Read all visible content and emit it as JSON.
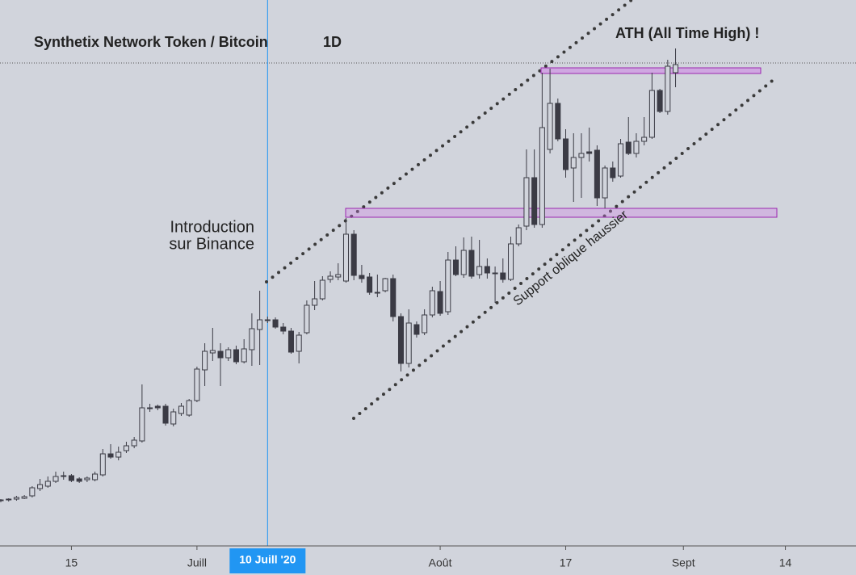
{
  "chart_data": {
    "type": "candlestick",
    "title": "Synthetix Network Token / Bitcoin",
    "interval": "1D",
    "up_color": "#d1d4dc",
    "down_color": "#3b3b45",
    "ylim": [
      0,
      680
    ],
    "xlim": [
      "2020-06-06",
      "2020-09-23"
    ],
    "xticks": [
      {
        "value": "2020-06-15",
        "label": "15"
      },
      {
        "value": "2020-07-01",
        "label": "Juill"
      },
      {
        "value": "2020-08-01",
        "label": "Août"
      },
      {
        "value": "2020-08-17",
        "label": "17"
      },
      {
        "value": "2020-09-01",
        "label": "Sept"
      },
      {
        "value": "2020-09-14",
        "label": "14"
      }
    ],
    "crosshair": {
      "x": "2020-07-10",
      "label": "10 Juill '20"
    },
    "annotations": {
      "ath": "ATH (All Time High) !",
      "introduction": [
        "Introduction",
        "sur Binance"
      ],
      "support": "Support oblique haussier"
    },
    "x": [
      "2020-06-06",
      "2020-06-07",
      "2020-06-08",
      "2020-06-09",
      "2020-06-10",
      "2020-06-11",
      "2020-06-12",
      "2020-06-13",
      "2020-06-14",
      "2020-06-15",
      "2020-06-16",
      "2020-06-17",
      "2020-06-18",
      "2020-06-19",
      "2020-06-20",
      "2020-06-21",
      "2020-06-22",
      "2020-06-23",
      "2020-06-24",
      "2020-06-25",
      "2020-06-26",
      "2020-06-27",
      "2020-06-28",
      "2020-06-29",
      "2020-06-30",
      "2020-07-01",
      "2020-07-02",
      "2020-07-03",
      "2020-07-04",
      "2020-07-05",
      "2020-07-06",
      "2020-07-07",
      "2020-07-08",
      "2020-07-09",
      "2020-07-10",
      "2020-07-11",
      "2020-07-12",
      "2020-07-13",
      "2020-07-14",
      "2020-07-15",
      "2020-07-16",
      "2020-07-17",
      "2020-07-18",
      "2020-07-19",
      "2020-07-20",
      "2020-07-21",
      "2020-07-22",
      "2020-07-23",
      "2020-07-24",
      "2020-07-25",
      "2020-07-26",
      "2020-07-27",
      "2020-07-28",
      "2020-07-29",
      "2020-07-30",
      "2020-07-31",
      "2020-08-01",
      "2020-08-02",
      "2020-08-03",
      "2020-08-04",
      "2020-08-05",
      "2020-08-06",
      "2020-08-07",
      "2020-08-08",
      "2020-08-09",
      "2020-08-10",
      "2020-08-11",
      "2020-08-12",
      "2020-08-13",
      "2020-08-14",
      "2020-08-15",
      "2020-08-16",
      "2020-08-17",
      "2020-08-18",
      "2020-08-19",
      "2020-08-20",
      "2020-08-21",
      "2020-08-22",
      "2020-08-23",
      "2020-08-24",
      "2020-08-25",
      "2020-08-26",
      "2020-08-27",
      "2020-08-28",
      "2020-08-29",
      "2020-08-30",
      "2020-08-31"
    ],
    "open": [
      60,
      61,
      62,
      63,
      66,
      75,
      78,
      84,
      91,
      91,
      87,
      86,
      86,
      92,
      118,
      114,
      122,
      128,
      134,
      175,
      177,
      177,
      155,
      168,
      166,
      184,
      222,
      243,
      245,
      237,
      247,
      232,
      247,
      272,
      284,
      284,
      275,
      270,
      245,
      268,
      302,
      310,
      334,
      337,
      332,
      390,
      339,
      337,
      318,
      320,
      335,
      288,
      230,
      278,
      268,
      290,
      319,
      294,
      358,
      340,
      370,
      340,
      350,
      342,
      342,
      334,
      378,
      400,
      460,
      402,
      495,
      552,
      508,
      472,
      485,
      492,
      494,
      435,
      472,
      462,
      504,
      490,
      505,
      510,
      568,
      542,
      590
    ],
    "high": [
      62,
      63,
      66,
      67,
      78,
      87,
      90,
      96,
      96,
      93,
      89,
      90,
      96,
      124,
      130,
      127,
      133,
      139,
      204,
      180,
      179,
      180,
      174,
      181,
      186,
      226,
      255,
      274,
      255,
      250,
      252,
      260,
      292,
      320,
      288,
      287,
      280,
      274,
      269,
      308,
      332,
      338,
      344,
      354,
      410,
      395,
      352,
      342,
      340,
      336,
      340,
      292,
      297,
      282,
      297,
      325,
      332,
      368,
      375,
      386,
      387,
      383,
      360,
      350,
      360,
      387,
      402,
      495,
      495,
      590,
      595,
      558,
      520,
      515,
      515,
      522,
      500,
      475,
      480,
      508,
      535,
      515,
      535,
      590,
      570,
      606,
      620
    ],
    "low": [
      58,
      59,
      60,
      62,
      64,
      72,
      76,
      82,
      86,
      83,
      82,
      83,
      84,
      90,
      112,
      110,
      119,
      125,
      132,
      170,
      172,
      153,
      152,
      165,
      164,
      182,
      202,
      233,
      202,
      233,
      229,
      230,
      227,
      228,
      280,
      273,
      266,
      242,
      230,
      266,
      296,
      308,
      330,
      333,
      330,
      333,
      330,
      315,
      312,
      318,
      282,
      220,
      225,
      262,
      265,
      287,
      289,
      290,
      338,
      336,
      335,
      335,
      335,
      305,
      330,
      332,
      375,
      395,
      398,
      398,
      490,
      505,
      460,
      430,
      435,
      480,
      425,
      422,
      455,
      460,
      488,
      485,
      500,
      508,
      540,
      538,
      572
    ],
    "close": [
      61,
      62,
      64,
      65,
      76,
      80,
      84,
      90,
      91,
      85,
      84,
      88,
      93,
      118,
      114,
      120,
      128,
      135,
      175,
      175,
      175,
      156,
      170,
      177,
      184,
      223,
      245,
      246,
      237,
      247,
      232,
      248,
      273,
      284,
      284,
      275,
      270,
      244,
      265,
      302,
      310,
      333,
      338,
      340,
      390,
      339,
      335,
      318,
      318,
      335,
      288,
      230,
      280,
      266,
      290,
      320,
      292,
      358,
      340,
      370,
      338,
      350,
      342,
      342,
      334,
      378,
      398,
      460,
      402,
      522,
      552,
      508,
      470,
      485,
      490,
      490,
      435,
      472,
      460,
      502,
      490,
      505,
      510,
      568,
      542,
      598,
      600
    ]
  }
}
